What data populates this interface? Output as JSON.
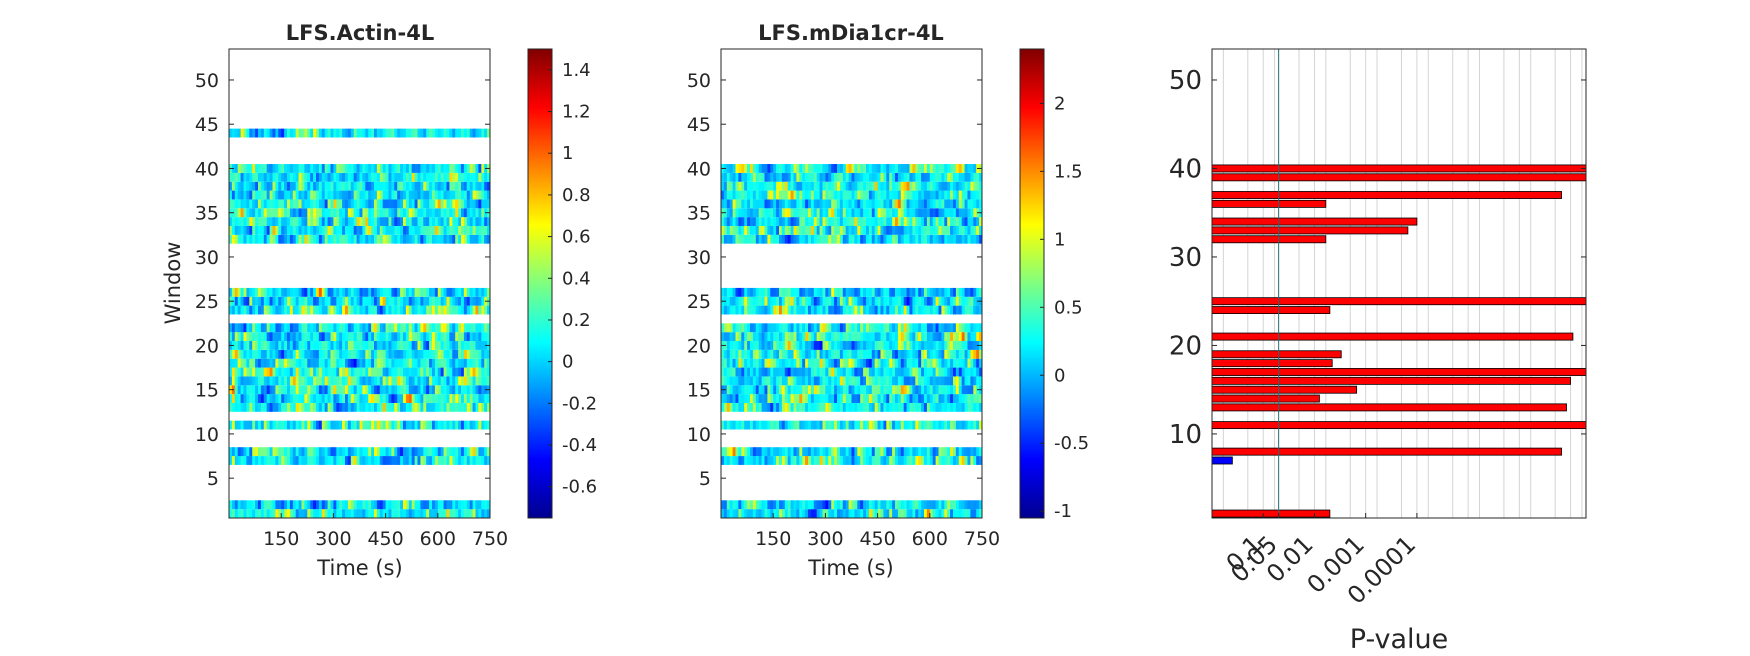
{
  "chart_data": [
    {
      "type": "heatmap",
      "title": "LFS.Actin-4L",
      "xlabel": "Time (s)",
      "ylabel": "Window",
      "xlim": [
        0,
        750
      ],
      "ylim": [
        0.5,
        53.5
      ],
      "xticks": [
        150,
        300,
        450,
        600,
        750
      ],
      "xtick_labels": [
        "150",
        "300",
        "450",
        "600",
        "750"
      ],
      "yticks": [
        5,
        10,
        15,
        20,
        25,
        30,
        35,
        40,
        45,
        50
      ],
      "ytick_labels": [
        "5",
        "10",
        "15",
        "20",
        "25",
        "30",
        "35",
        "40",
        "45",
        "50"
      ],
      "window_bands": [
        [
          1,
          2
        ],
        [
          7,
          8
        ],
        [
          11,
          11
        ],
        [
          13,
          17
        ],
        [
          18,
          21
        ],
        [
          22,
          22
        ],
        [
          24,
          26
        ],
        [
          32,
          34
        ],
        [
          35,
          37
        ],
        [
          38,
          40
        ],
        [
          44,
          44
        ]
      ],
      "colorbar": {
        "min": -0.75,
        "max": 1.5,
        "ticks": [
          -0.6,
          -0.4,
          -0.2,
          0,
          0.2,
          0.4,
          0.6,
          0.8,
          1,
          1.2,
          1.4
        ],
        "tick_labels": [
          "-0.6",
          "-0.4",
          "-0.2",
          "0",
          "0.2",
          "0.4",
          "0.6",
          "0.8",
          "1",
          "1.2",
          "1.4"
        ],
        "colormap": "jet"
      }
    },
    {
      "type": "heatmap",
      "title": "LFS.mDia1cr-4L",
      "xlabel": "Time (s)",
      "ylabel": "",
      "xlim": [
        0,
        750
      ],
      "ylim": [
        0.5,
        53.5
      ],
      "xticks": [
        150,
        300,
        450,
        600,
        750
      ],
      "xtick_labels": [
        "150",
        "300",
        "450",
        "600",
        "750"
      ],
      "yticks": [
        5,
        10,
        15,
        20,
        25,
        30,
        35,
        40,
        45,
        50
      ],
      "ytick_labels": [
        "5",
        "10",
        "15",
        "20",
        "25",
        "30",
        "35",
        "40",
        "45",
        "50"
      ],
      "window_bands": [
        [
          1,
          2
        ],
        [
          7,
          8
        ],
        [
          11,
          11
        ],
        [
          13,
          17
        ],
        [
          18,
          21
        ],
        [
          22,
          22
        ],
        [
          24,
          26
        ],
        [
          32,
          34
        ],
        [
          35,
          37
        ],
        [
          38,
          40
        ]
      ],
      "colorbar": {
        "min": -1.05,
        "max": 2.4,
        "ticks": [
          -1,
          -0.5,
          0,
          0.5,
          1,
          1.5,
          2
        ],
        "tick_labels": [
          "-1",
          "-0.5",
          "0",
          "0.5",
          "1",
          "1.5",
          "2"
        ],
        "colormap": "jet"
      }
    },
    {
      "type": "bar",
      "orientation": "horizontal",
      "title": "",
      "xlabel": "P-value",
      "ylabel": "",
      "x_scale": "-log10",
      "xlim": [
        1,
        5e-08
      ],
      "ylim": [
        0.5,
        53.5
      ],
      "xticks": [
        0.1,
        0.05,
        0.01,
        0.001,
        0.0001
      ],
      "xtick_labels": [
        "0.1",
        "0.05",
        "0.01",
        "0.001",
        "0.0001"
      ],
      "yticks": [
        10,
        20,
        30,
        40,
        50
      ],
      "ytick_labels": [
        "10",
        "20",
        "30",
        "40",
        "50"
      ],
      "threshold": 0.05,
      "bars": [
        {
          "window": 1,
          "p": 0.005,
          "color": "#ff0000"
        },
        {
          "window": 7,
          "p": 0.4,
          "color": "#0000ff"
        },
        {
          "window": 8,
          "p": 1.5e-07,
          "color": "#ff0000"
        },
        {
          "window": 11,
          "p": 5e-08,
          "color": "#ff0000"
        },
        {
          "window": 13,
          "p": 1.2e-07,
          "color": "#ff0000"
        },
        {
          "window": 14,
          "p": 0.008,
          "color": "#ff0000"
        },
        {
          "window": 15,
          "p": 0.0015,
          "color": "#ff0000"
        },
        {
          "window": 16,
          "p": 1e-07,
          "color": "#ff0000"
        },
        {
          "window": 17,
          "p": 5e-08,
          "color": "#ff0000"
        },
        {
          "window": 18,
          "p": 0.0045,
          "color": "#ff0000"
        },
        {
          "window": 19,
          "p": 0.003,
          "color": "#ff0000"
        },
        {
          "window": 21,
          "p": 9e-08,
          "color": "#ff0000"
        },
        {
          "window": 24,
          "p": 0.005,
          "color": "#ff0000"
        },
        {
          "window": 25,
          "p": 5e-08,
          "color": "#ff0000"
        },
        {
          "window": 32,
          "p": 0.006,
          "color": "#ff0000"
        },
        {
          "window": 33,
          "p": 0.00015,
          "color": "#ff0000"
        },
        {
          "window": 34,
          "p": 0.0001,
          "color": "#ff0000"
        },
        {
          "window": 36,
          "p": 0.006,
          "color": "#ff0000"
        },
        {
          "window": 37,
          "p": 1.5e-07,
          "color": "#ff0000"
        },
        {
          "window": 39,
          "p": 5e-08,
          "color": "#ff0000"
        },
        {
          "window": 40,
          "p": 5e-08,
          "color": "#ff0000"
        }
      ]
    }
  ]
}
